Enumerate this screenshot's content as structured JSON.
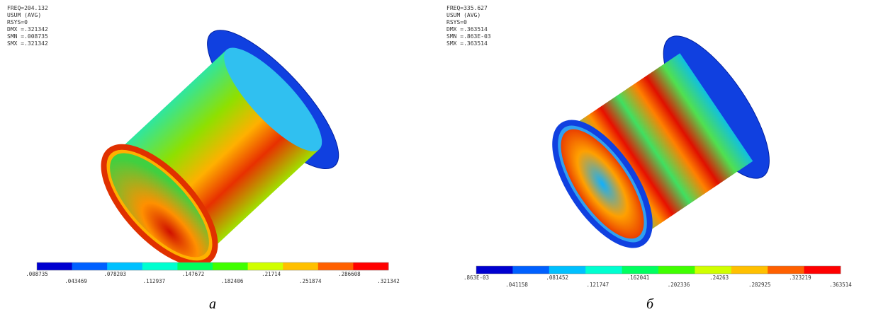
{
  "panels": [
    {
      "info": [
        "FREQ=204.132",
        "USUM      (AVG)",
        "RSYS=0",
        "DMX =.321342",
        "SMN =.008735",
        "SMX =.321342"
      ],
      "legend": [
        ".008735",
        ".043469",
        ".078203",
        ".112937",
        ".147672",
        ".182406",
        ".21714",
        ".251874",
        ".286608",
        ".321342"
      ],
      "caption": "а"
    },
    {
      "info": [
        "FREQ=335.627",
        "USUM      (AVG)",
        "RSYS=0",
        "DMX =.363514",
        "SMN =.863E-03",
        "SMX =.363514"
      ],
      "legend": [
        ".863E-03",
        ".041158",
        ".081452",
        ".121747",
        ".162041",
        ".202336",
        ".24263",
        ".282925",
        ".323219",
        ".363514"
      ],
      "caption": "б"
    }
  ]
}
